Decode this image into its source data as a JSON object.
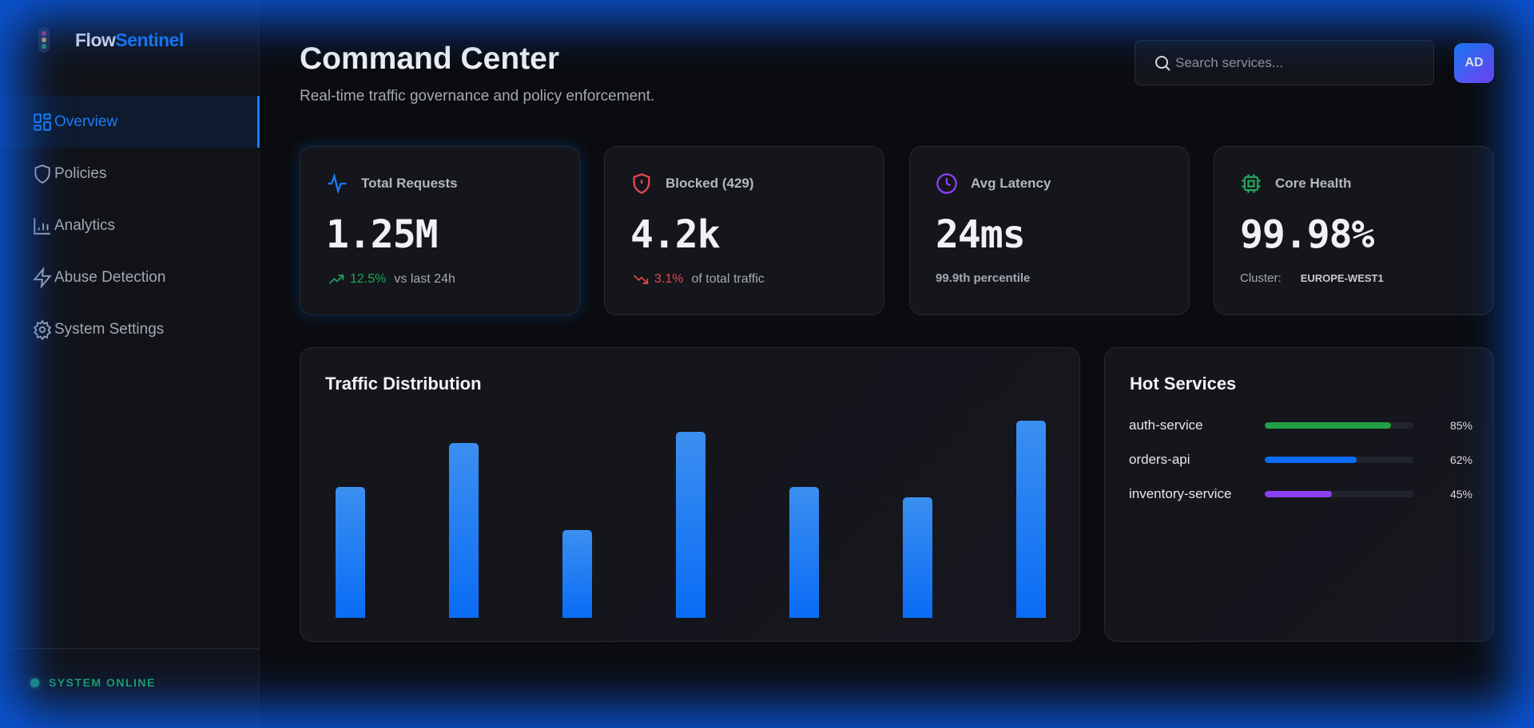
{
  "brand": {
    "part1": "Flow",
    "part2": "Sentinel",
    "logo_icon": "traffic-light-icon"
  },
  "sidebar": {
    "items": [
      {
        "label": "Overview",
        "icon": "grid-icon",
        "active": true
      },
      {
        "label": "Policies",
        "icon": "shield-icon"
      },
      {
        "label": "Analytics",
        "icon": "bar-chart-icon"
      },
      {
        "label": "Abuse Detection",
        "icon": "lightning-icon"
      },
      {
        "label": "System Settings",
        "icon": "gear-icon"
      }
    ],
    "status": "SYSTEM ONLINE"
  },
  "header": {
    "title": "Command Center",
    "subtitle": "Real-time traffic governance and policy enforcement.",
    "search_placeholder": "Search services...",
    "avatar": "AD"
  },
  "cards": [
    {
      "label": "Total Requests",
      "value": "1.25M",
      "delta": "12.5%",
      "delta_text": "vs last 24h",
      "color": "#1a7cf5"
    },
    {
      "label": "Blocked (429)",
      "value": "4.2k",
      "delta": "3.1%",
      "delta_text": "of total traffic",
      "color": "#e5484d"
    },
    {
      "label": "Avg Latency",
      "value": "24ms",
      "note": "99.9th percentile",
      "color": "#8a3ff2"
    },
    {
      "label": "Core Health",
      "value": "99.98%",
      "cluster_label": "Cluster:",
      "cluster": "EUROPE-WEST1",
      "color": "#22a45a"
    }
  ],
  "traffic": {
    "title": "Traffic Distribution"
  },
  "chart_data": {
    "type": "bar",
    "title": "Traffic Distribution",
    "values": [
      60,
      80,
      40,
      85,
      60,
      55,
      90
    ],
    "ylim": [
      0,
      100
    ]
  },
  "hot_services": {
    "title": "Hot Services",
    "items": [
      {
        "name": "auth-service",
        "value": 85,
        "label": "85%",
        "color": "#22a045"
      },
      {
        "name": "orders-api",
        "value": 62,
        "label": "62%",
        "color": "#0a6cf5"
      },
      {
        "name": "inventory-service",
        "value": 45,
        "label": "45%",
        "color": "#8a3ff2"
      }
    ]
  }
}
